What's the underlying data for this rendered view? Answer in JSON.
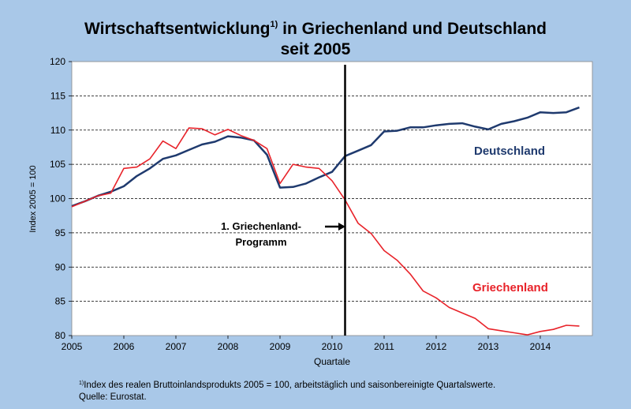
{
  "title": {
    "prefix": "Wirtschaftsentwicklung",
    "footnote_mark": "1)",
    "suffix": " in Griechenland und Deutschland",
    "line2": "seit 2005"
  },
  "footnote": {
    "mark": "1)",
    "text": "Index  des realen Bruttoinlandsprodukts  2005 = 100, arbeitstäglich und saisonbereinigte Quartalswerte.",
    "source": "Quelle:  Eurostat."
  },
  "colors": {
    "background": "#a9c8e8",
    "plot": "#ffffff",
    "deutschland": "#1f3a6e",
    "griechenland": "#e8232a",
    "marker": "#000000"
  },
  "chart_data": {
    "type": "line",
    "title": "Wirtschaftsentwicklung in Griechenland und Deutschland seit 2005",
    "xlabel": "Quartale",
    "ylabel": "Index  2005 = 100",
    "xlim": [
      2005,
      2015
    ],
    "ylim": [
      80,
      120
    ],
    "yticks": [
      80,
      85,
      90,
      95,
      100,
      105,
      110,
      115,
      120
    ],
    "xticks": [
      2005,
      2006,
      2007,
      2008,
      2009,
      2010,
      2011,
      2012,
      2013,
      2014
    ],
    "grid": "horizontal dashed",
    "x_start": 2005,
    "x_step": 0.25,
    "series": [
      {
        "name": "Deutschland",
        "color": "#1f3a6e",
        "values": [
          98.9,
          99.6,
          100.4,
          101.0,
          101.8,
          103.3,
          104.4,
          105.8,
          106.3,
          107.1,
          107.9,
          108.3,
          109.1,
          108.9,
          108.5,
          106.4,
          101.6,
          101.7,
          102.2,
          103.1,
          103.9,
          106.2,
          107.0,
          107.8,
          109.8,
          109.9,
          110.4,
          110.4,
          110.7,
          110.9,
          111.0,
          110.5,
          110.1,
          110.9,
          111.3,
          111.8,
          112.6,
          112.5,
          112.6,
          113.3
        ]
      },
      {
        "name": "Griechenland",
        "color": "#e8232a",
        "values": [
          98.8,
          99.6,
          100.4,
          100.8,
          104.4,
          104.6,
          105.8,
          108.4,
          107.3,
          110.3,
          110.2,
          109.3,
          110.1,
          109.2,
          108.5,
          107.3,
          102.2,
          105.0,
          104.6,
          104.4,
          102.6,
          99.8,
          96.4,
          94.9,
          92.4,
          91.0,
          89.0,
          86.5,
          85.5,
          84.1,
          83.3,
          82.5,
          81.0,
          80.7,
          80.4,
          80.1,
          80.6,
          80.9,
          81.5,
          81.4
        ]
      }
    ],
    "series_labels": {
      "deutschland": "Deutschland",
      "griechenland": "Griechenland"
    },
    "marker": {
      "x": 2010.25,
      "label_line1": "1. Griechenland-",
      "label_line2": "Programm"
    }
  }
}
